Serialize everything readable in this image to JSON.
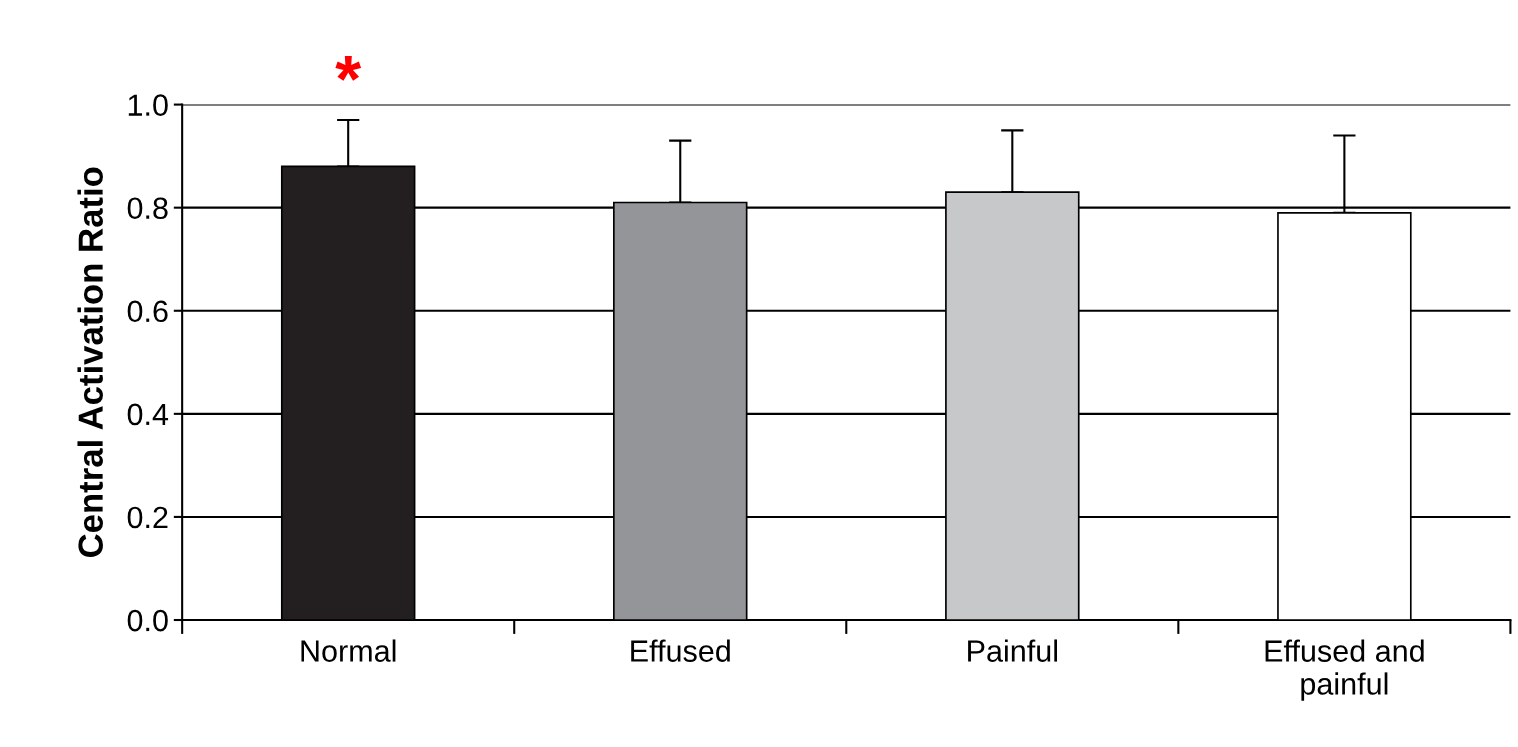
{
  "chart_data": {
    "type": "bar",
    "ylabel": "Central Activation Ratio",
    "categories": [
      "Normal",
      "Effused",
      "Painful",
      "Effused and\npainful"
    ],
    "values": [
      0.88,
      0.81,
      0.83,
      0.79
    ],
    "errors": [
      0.09,
      0.12,
      0.12,
      0.15
    ],
    "colors": [
      "#231f20",
      "#939598",
      "#c7c8ca",
      "#ffffff"
    ],
    "ylim": [
      0,
      1.0
    ],
    "yticks": [
      {
        "value": 0,
        "label": "0.0"
      },
      0.2,
      0.4,
      0.6,
      0.8,
      {
        "value": 1.0,
        "label": "1.0"
      }
    ],
    "grid": "y",
    "annotations": [
      "*"
    ]
  }
}
